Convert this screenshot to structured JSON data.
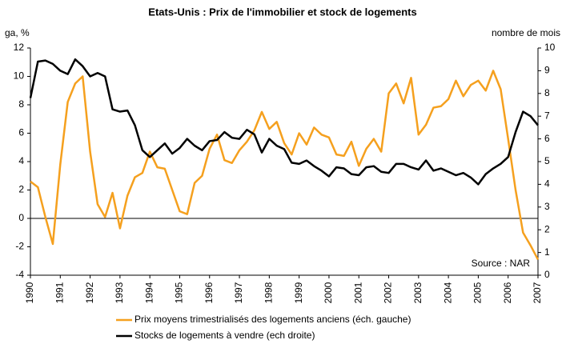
{
  "chart_data": {
    "type": "line",
    "title": "Etats-Unis : Prix de l'immobilier et stock de logements",
    "ylabel": "ga, %",
    "y2label": "nombre de  mois",
    "annotation": "Source : NAR",
    "x": [
      1990,
      1990.25,
      1990.5,
      1990.75,
      1991,
      1991.25,
      1991.5,
      1991.75,
      1992,
      1992.25,
      1992.5,
      1992.75,
      1993,
      1993.25,
      1993.5,
      1993.75,
      1994,
      1994.25,
      1994.5,
      1994.75,
      1995,
      1995.25,
      1995.5,
      1995.75,
      1996,
      1996.25,
      1996.5,
      1996.75,
      1997,
      1997.25,
      1997.5,
      1997.75,
      1998,
      1998.25,
      1998.5,
      1998.75,
      1999,
      1999.25,
      1999.5,
      1999.75,
      2000,
      2000.25,
      2000.5,
      2000.75,
      2001,
      2001.25,
      2001.5,
      2001.75,
      2002,
      2002.25,
      2002.5,
      2002.75,
      2003,
      2003.25,
      2003.5,
      2003.75,
      2004,
      2004.25,
      2004.5,
      2004.75,
      2005,
      2005.25,
      2005.5,
      2005.75,
      2006,
      2006.25,
      2006.5,
      2006.75,
      2007
    ],
    "xlim": [
      1990,
      2007
    ],
    "xticks": [
      1990,
      1991,
      1992,
      1993,
      1994,
      1995,
      1996,
      1997,
      1998,
      1999,
      2000,
      2001,
      2002,
      2003,
      2004,
      2005,
      2006,
      2007
    ],
    "ylim": [
      -4,
      12
    ],
    "yticks": [
      -4,
      -2,
      0,
      2,
      4,
      6,
      8,
      10,
      12
    ],
    "y2lim": [
      0,
      10
    ],
    "y2ticks": [
      0,
      1,
      2,
      3,
      4,
      5,
      6,
      7,
      8,
      9,
      10
    ],
    "series": [
      {
        "name": "Prix moyens trimestrialisés des logements anciens (éch. gauche)",
        "color": "#f5a01e",
        "values": [
          2.6,
          2.2,
          0.1,
          -1.8,
          3.8,
          8.2,
          9.5,
          10.0,
          4.7,
          1.0,
          0.1,
          1.8,
          -0.7,
          1.6,
          2.9,
          3.2,
          4.7,
          3.6,
          3.5,
          2.0,
          0.5,
          0.3,
          2.5,
          3.0,
          4.9,
          5.9,
          4.1,
          3.9,
          4.8,
          5.4,
          6.2,
          7.5,
          6.3,
          6.8,
          5.3,
          4.5,
          6.0,
          5.2,
          6.4,
          5.9,
          5.7,
          4.5,
          4.4,
          5.4,
          3.7,
          4.9,
          5.6,
          4.7,
          8.8,
          9.5,
          8.1,
          9.9,
          5.9,
          6.6,
          7.8,
          7.9,
          8.4,
          9.7,
          8.6,
          9.4,
          9.7,
          9.0,
          10.4,
          9.1,
          5.6,
          2.0,
          -1.0,
          -1.9,
          -2.9
        ]
      },
      {
        "name": "Stocks de logements à vendre (ech droite)",
        "color": "#000000",
        "axis": "y2",
        "values": [
          7.8,
          9.4,
          9.45,
          9.3,
          9.0,
          8.85,
          9.5,
          9.2,
          8.75,
          8.9,
          8.75,
          7.3,
          7.2,
          7.25,
          6.6,
          5.5,
          5.2,
          5.5,
          5.8,
          5.35,
          5.6,
          6.0,
          5.7,
          5.5,
          5.9,
          5.95,
          6.3,
          6.05,
          6.0,
          6.4,
          6.2,
          5.4,
          6.0,
          5.7,
          5.55,
          4.95,
          4.9,
          5.05,
          4.8,
          4.6,
          4.35,
          4.75,
          4.7,
          4.45,
          4.4,
          4.75,
          4.8,
          4.55,
          4.5,
          4.9,
          4.9,
          4.75,
          4.65,
          5.05,
          4.6,
          4.7,
          4.55,
          4.4,
          4.5,
          4.3,
          4.0,
          4.45,
          4.7,
          4.9,
          5.2,
          6.3,
          7.2,
          7.0,
          6.6
        ]
      }
    ]
  }
}
